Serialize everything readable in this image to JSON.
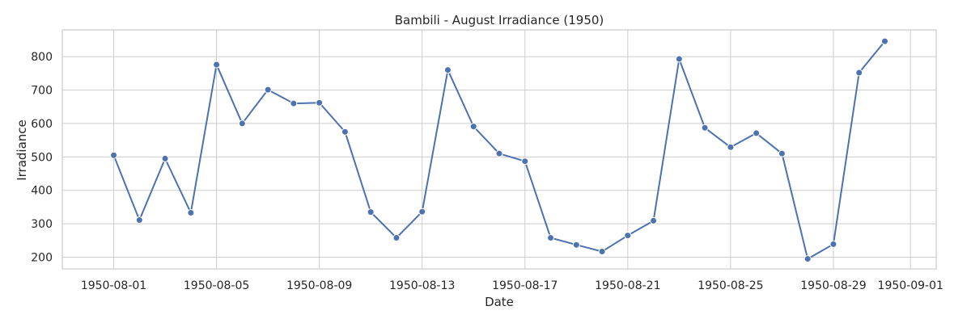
{
  "chart_data": {
    "type": "line",
    "title": "Bambili - August Irradiance (1950)",
    "xlabel": "Date",
    "ylabel": "Irradiance",
    "x": [
      "1950-08-01",
      "1950-08-02",
      "1950-08-03",
      "1950-08-04",
      "1950-08-05",
      "1950-08-06",
      "1950-08-07",
      "1950-08-08",
      "1950-08-09",
      "1950-08-10",
      "1950-08-11",
      "1950-08-12",
      "1950-08-13",
      "1950-08-14",
      "1950-08-15",
      "1950-08-16",
      "1950-08-17",
      "1950-08-18",
      "1950-08-19",
      "1950-08-20",
      "1950-08-21",
      "1950-08-22",
      "1950-08-23",
      "1950-08-24",
      "1950-08-25",
      "1950-08-26",
      "1950-08-27",
      "1950-08-28",
      "1950-08-29",
      "1950-08-30",
      "1950-08-31"
    ],
    "series": [
      {
        "values": [
          505,
          311,
          495,
          333,
          776,
          600,
          701,
          660,
          662,
          575,
          335,
          258,
          336,
          760,
          591,
          510,
          487,
          258,
          237,
          217,
          265,
          309,
          793,
          587,
          529,
          571,
          510,
          195,
          239,
          752,
          846
        ],
        "color": "#4c72b0"
      }
    ],
    "xlim": [
      "1950-07-30",
      "1950-09-02"
    ],
    "ylim": [
      165,
      880
    ],
    "x_ticks": [
      "1950-08-01",
      "1950-08-05",
      "1950-08-09",
      "1950-08-13",
      "1950-08-17",
      "1950-08-21",
      "1950-08-25",
      "1950-08-29",
      "1950-09-01"
    ],
    "y_ticks": [
      200,
      300,
      400,
      500,
      600,
      700,
      800
    ],
    "grid": true,
    "marker": "circle",
    "legend": "none"
  }
}
